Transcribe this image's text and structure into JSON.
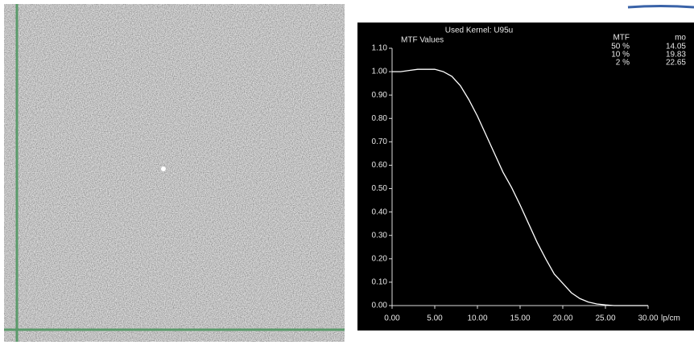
{
  "chart_data": {
    "type": "line",
    "title": "Used Kernel: U95u",
    "subtitle": "MTF Values",
    "xlabel": "lp/cm",
    "x": [
      0,
      1,
      2,
      3,
      4,
      5,
      6,
      7,
      8,
      9,
      10,
      11,
      12,
      13,
      14,
      15,
      16,
      17,
      18,
      19,
      20,
      21,
      22,
      23,
      24,
      25,
      26,
      27,
      28,
      29,
      30
    ],
    "values": [
      1.0,
      1.0,
      1.005,
      1.01,
      1.01,
      1.01,
      1.0,
      0.98,
      0.94,
      0.88,
      0.81,
      0.73,
      0.65,
      0.57,
      0.505,
      0.43,
      0.35,
      0.27,
      0.2,
      0.135,
      0.095,
      0.055,
      0.03,
      0.015,
      0.007,
      0.003,
      0,
      0,
      0,
      0,
      0
    ],
    "color": "#ffffff",
    "xlim": [
      0,
      30
    ],
    "xticks": [
      {
        "value": 0,
        "label": "0.00"
      },
      {
        "value": 5,
        "label": "5.00"
      },
      {
        "value": 10,
        "label": "10.00"
      },
      {
        "value": 15,
        "label": "15.00"
      },
      {
        "value": 20,
        "label": "20.00"
      },
      {
        "value": 25,
        "label": "25.00"
      },
      {
        "value": 30,
        "label": "30.00"
      }
    ],
    "ylim": [
      0,
      1.1
    ],
    "yticks": [
      {
        "value": 0,
        "label": "0.00"
      },
      {
        "value": 0.1,
        "label": "0.10"
      },
      {
        "value": 0.2,
        "label": "0.20"
      },
      {
        "value": 0.3,
        "label": "0.30"
      },
      {
        "value": 0.4,
        "label": "0.40"
      },
      {
        "value": 0.5,
        "label": "0.50"
      },
      {
        "value": 0.6,
        "label": "0.60"
      },
      {
        "value": 0.7,
        "label": "0.70"
      },
      {
        "value": 0.8,
        "label": "0.80"
      },
      {
        "value": 0.9,
        "label": "0.90"
      },
      {
        "value": 1.0,
        "label": "1.00"
      },
      {
        "value": 1.1,
        "label": "1.10"
      }
    ]
  },
  "mtf_table": {
    "headers": [
      "MTF",
      "mo"
    ],
    "rows": [
      [
        "50 %",
        "14.05"
      ],
      [
        "10 %",
        "19.83"
      ],
      [
        "2 %",
        "22.65"
      ]
    ]
  }
}
